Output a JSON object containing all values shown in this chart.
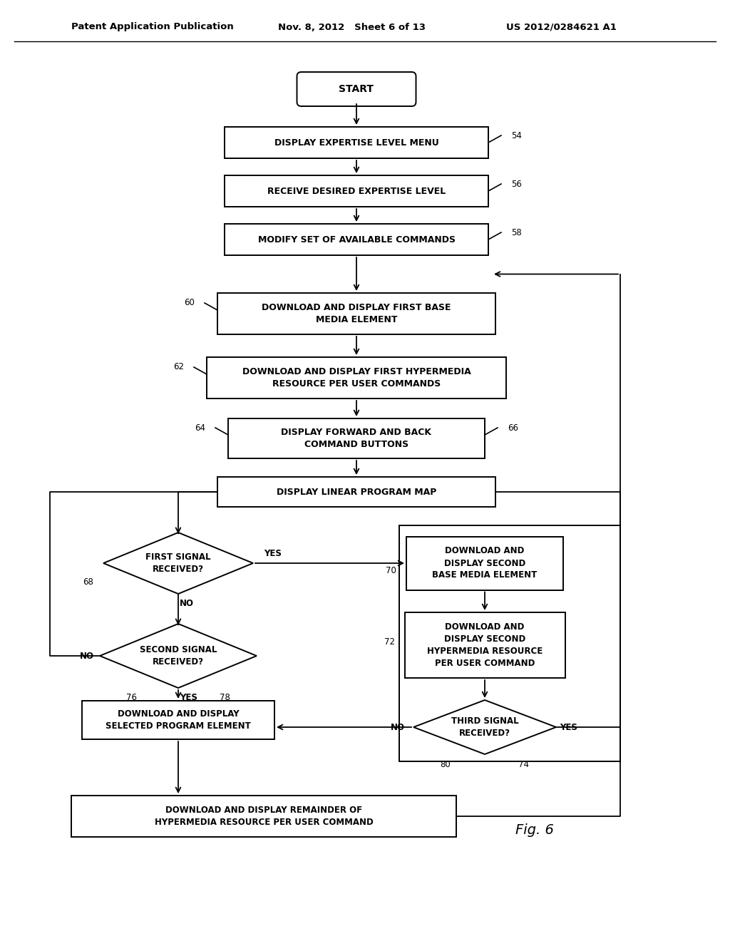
{
  "bg": "#ffffff",
  "header_left": "Patent Application Publication",
  "header_mid": "Nov. 8, 2012   Sheet 6 of 13",
  "header_right": "US 2012/0284621 A1",
  "fig_label": "Fig. 6",
  "lw": 1.4
}
